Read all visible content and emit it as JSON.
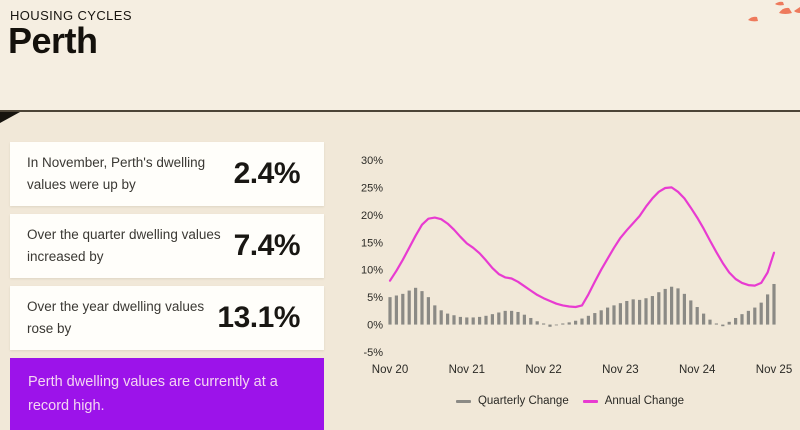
{
  "header": {
    "eyebrow": "HOUSING CYCLES",
    "title": "Perth"
  },
  "stats": [
    {
      "label": "In November, Perth's dwelling values were up by",
      "value": "2.4%"
    },
    {
      "label": "Over the quarter dwelling values increased by",
      "value": "7.4%"
    },
    {
      "label": "Over the year dwelling values rose by",
      "value": "13.1%"
    }
  ],
  "callout": {
    "text": "Perth dwelling values are currently at a record high."
  },
  "chart_data": {
    "type": "bar+line",
    "x_start_label": "Nov 20",
    "x_end_label": "Nov 25",
    "x_tick_labels": [
      "Nov 20",
      "Nov 21",
      "Nov 22",
      "Nov 23",
      "Nov 24",
      "Nov 25"
    ],
    "x_tick_month_positions": [
      0,
      12,
      24,
      36,
      48,
      60
    ],
    "y_ticks": [
      "30%",
      "25%",
      "20%",
      "15%",
      "10%",
      "5%",
      "0%",
      "-5%"
    ],
    "y_tick_values": [
      30,
      25,
      20,
      15,
      10,
      5,
      0,
      -5
    ],
    "ylim": [
      -5,
      30
    ],
    "grid": false,
    "legend_position": "bottom",
    "series": [
      {
        "name": "Quarterly Change",
        "type": "bar",
        "color": "#8b8a85",
        "values": [
          5.0,
          5.3,
          5.6,
          6.2,
          6.7,
          6.1,
          5.0,
          3.5,
          2.6,
          2.0,
          1.7,
          1.4,
          1.3,
          1.3,
          1.4,
          1.6,
          1.9,
          2.2,
          2.5,
          2.5,
          2.3,
          1.8,
          1.2,
          0.6,
          0.2,
          -0.4,
          -0.1,
          0.2,
          0.4,
          0.7,
          1.1,
          1.6,
          2.1,
          2.6,
          3.1,
          3.5,
          3.9,
          4.3,
          4.6,
          4.5,
          4.8,
          5.2,
          5.9,
          6.5,
          6.9,
          6.6,
          5.6,
          4.4,
          3.2,
          2.0,
          0.9,
          0.2,
          -0.3,
          0.5,
          1.2,
          1.9,
          2.5,
          3.1,
          4.0,
          5.5,
          7.4
        ]
      },
      {
        "name": "Annual Change",
        "type": "line",
        "color": "#e83bd1",
        "values": [
          8.0,
          9.8,
          11.8,
          14.0,
          16.2,
          18.2,
          19.3,
          19.5,
          19.2,
          18.4,
          17.3,
          16.0,
          14.8,
          14.0,
          13.0,
          11.7,
          10.3,
          9.2,
          8.6,
          8.4,
          7.8,
          7.0,
          6.2,
          5.4,
          4.8,
          4.3,
          3.8,
          3.5,
          3.3,
          3.2,
          3.5,
          5.5,
          7.8,
          10.0,
          12.0,
          14.0,
          15.8,
          17.2,
          18.5,
          19.8,
          21.5,
          23.0,
          24.2,
          24.9,
          25.0,
          24.2,
          23.0,
          21.3,
          19.5,
          17.5,
          15.3,
          13.2,
          11.2,
          9.5,
          8.3,
          7.6,
          7.2,
          7.1,
          7.6,
          9.5,
          13.1
        ]
      }
    ],
    "legend": [
      {
        "label": "Quarterly Change",
        "color": "#8b8a85"
      },
      {
        "label": "Annual Change",
        "color": "#e83bd1"
      }
    ]
  },
  "colors": {
    "background_top": "#f5eee1",
    "background_bottom": "#f1e8d8",
    "card": "#fffefa",
    "callout": "#9c13ea",
    "callout_text": "#f4d6f2",
    "bar": "#8b8a85",
    "line": "#e83bd1",
    "decor": "#ee7a5c",
    "divider": "#4c4437"
  }
}
